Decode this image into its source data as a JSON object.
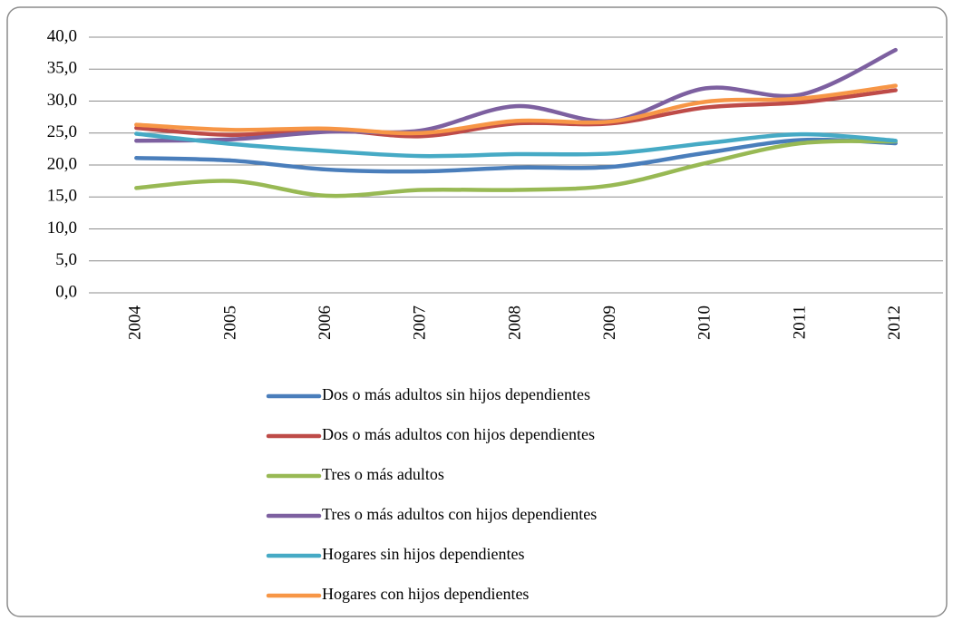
{
  "chart_data": {
    "type": "line",
    "categories": [
      "2004",
      "2005",
      "2006",
      "2007",
      "2008",
      "2009",
      "2010",
      "2011",
      "2012"
    ],
    "series": [
      {
        "name": "Dos o más adultos sin hijos dependientes",
        "color": "#4a7ebb",
        "values": [
          21.1,
          20.7,
          19.3,
          19.0,
          19.6,
          19.7,
          21.9,
          23.9,
          23.4
        ]
      },
      {
        "name": "Dos o más adultos con hijos dependientes",
        "color": "#be4b48",
        "values": [
          25.8,
          24.7,
          25.5,
          24.5,
          26.5,
          26.5,
          29.0,
          29.8,
          31.7
        ]
      },
      {
        "name": "Tres o más adultos",
        "color": "#98b954",
        "values": [
          16.4,
          17.5,
          15.2,
          16.1,
          16.1,
          16.8,
          20.3,
          23.4,
          23.7
        ]
      },
      {
        "name": "Tres o más adultos con hijos dependientes",
        "color": "#7d60a0",
        "values": [
          23.8,
          24.0,
          25.2,
          25.4,
          29.2,
          26.9,
          32.0,
          31.0,
          38.0
        ]
      },
      {
        "name": "Hogares sin hijos dependientes",
        "color": "#46aac5",
        "values": [
          24.9,
          23.3,
          22.2,
          21.4,
          21.7,
          21.8,
          23.4,
          24.8,
          23.8
        ]
      },
      {
        "name": "Hogares con hijos dependientes",
        "color": "#f79646",
        "values": [
          26.3,
          25.5,
          25.7,
          25.0,
          26.9,
          26.8,
          29.9,
          30.4,
          32.4
        ]
      }
    ],
    "ylim": [
      0,
      40
    ],
    "yticks": [
      {
        "value": 0,
        "label": "0,0"
      },
      {
        "value": 5,
        "label": "5,0"
      },
      {
        "value": 10,
        "label": "10,0"
      },
      {
        "value": 15,
        "label": "15,0"
      },
      {
        "value": 20,
        "label": "20,0"
      },
      {
        "value": 25,
        "label": "25,0"
      },
      {
        "value": 30,
        "label": "30,0"
      },
      {
        "value": 35,
        "label": "35,0"
      },
      {
        "value": 40,
        "label": "40,0"
      }
    ],
    "grid": true,
    "smooth": true,
    "legend": "bottom"
  }
}
